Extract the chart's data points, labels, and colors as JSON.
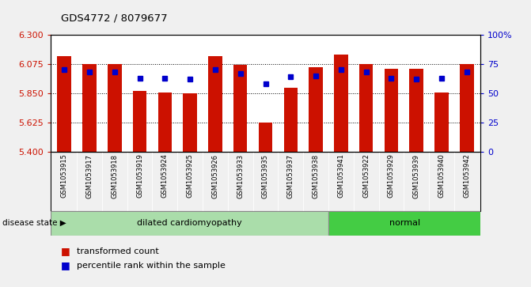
{
  "title": "GDS4772 / 8079677",
  "samples": [
    "GSM1053915",
    "GSM1053917",
    "GSM1053918",
    "GSM1053919",
    "GSM1053924",
    "GSM1053925",
    "GSM1053926",
    "GSM1053933",
    "GSM1053935",
    "GSM1053937",
    "GSM1053938",
    "GSM1053941",
    "GSM1053922",
    "GSM1053929",
    "GSM1053939",
    "GSM1053940",
    "GSM1053942"
  ],
  "bar_values": [
    6.135,
    6.075,
    6.075,
    5.865,
    5.855,
    5.848,
    6.135,
    6.065,
    5.625,
    5.895,
    6.05,
    6.145,
    6.075,
    6.04,
    6.04,
    5.855,
    6.075
  ],
  "percentile_values": [
    70,
    68,
    68,
    63,
    63,
    62,
    70,
    67,
    58,
    64,
    65,
    70,
    68,
    63,
    62,
    63,
    68
  ],
  "y_min": 5.4,
  "y_max": 6.3,
  "y_ticks": [
    5.4,
    5.625,
    5.85,
    6.075,
    6.3
  ],
  "right_y_ticks": [
    0,
    25,
    50,
    75,
    100
  ],
  "bar_color": "#cc1100",
  "dot_color": "#0000cc",
  "legend_bar_label": "transformed count",
  "legend_dot_label": "percentile rank within the sample",
  "disease_groups": [
    {
      "label": "dilated cardiomyopathy",
      "count": 11,
      "color": "#aaddaa"
    },
    {
      "label": "normal",
      "count": 6,
      "color": "#44cc44"
    }
  ],
  "disease_state_label": "disease state",
  "fig_bg_color": "#f0f0f0",
  "plot_bg_color": "#ffffff",
  "xtick_bg_color": "#cccccc"
}
